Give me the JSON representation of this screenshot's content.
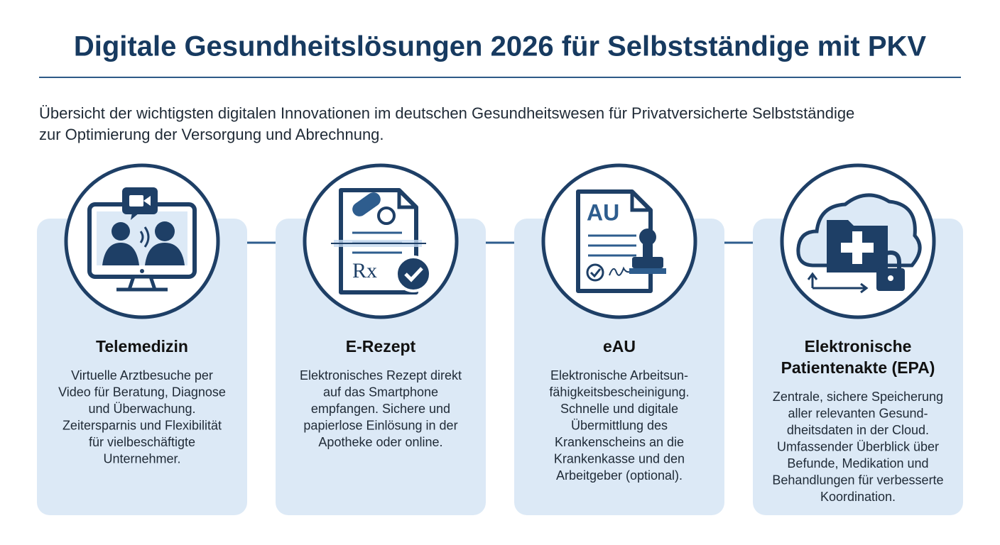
{
  "header": {
    "title": "Digitale Gesundheitslösungen 2026 für Selbstständige mit PKV",
    "intro": [
      "Übersicht der wichtigsten digitalen Innovationen im deutschen Gesundheitswesen für Privatversicherte Selbstständige",
      "zur Optimierung der Versorgung und Abrechnung."
    ]
  },
  "cards": [
    {
      "title": [
        "Telemedizin"
      ],
      "lines": [
        "Virtuelle Arztbesuche per",
        "Video für Beratung, Diagnose",
        "und Überwachung.",
        "Zeitersparnis und Flexibilität",
        "für vielbeschäftigte",
        "Unternehmer."
      ]
    },
    {
      "title": [
        "E-Rezept"
      ],
      "icon_text": "Rx",
      "lines": [
        "Elektronisches Rezept direkt",
        "auf das Smartphone",
        "empfangen. Sichere und",
        "papierlose Einlösung in der",
        "Apotheke oder online."
      ]
    },
    {
      "title": [
        "eAU"
      ],
      "icon_text": "AU",
      "lines": [
        "Elektronische Arbeitsun-",
        "fähigkeitsbescheinigung.",
        "Schnelle und digitale",
        "Übermittlung des",
        "Krankenscheins an die",
        "Krankenkasse und den",
        "Arbeitgeber (optional)."
      ]
    },
    {
      "title": [
        "Elektronische",
        "Patientenakte (EPA)"
      ],
      "lines": [
        "Zentrale, sichere Speicherung",
        "aller relevanten Gesund-",
        "dheitsdaten in der Cloud.",
        "Umfassender Überblick über",
        "Befunde, Medikation und",
        "Behandlungen für verbesserte",
        "Koordination."
      ]
    }
  ]
}
